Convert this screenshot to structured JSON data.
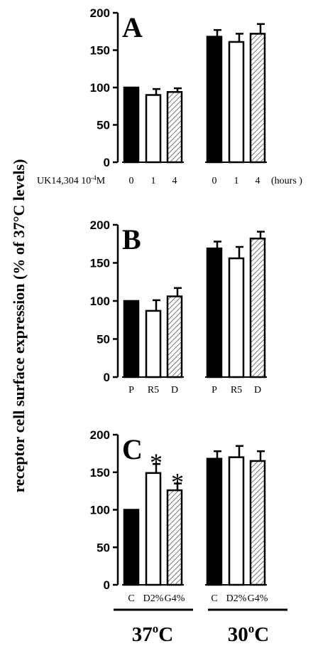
{
  "ylabel": "receptor cell surface expression  (% of 37°C levels)",
  "colors": {
    "solid": "#000000",
    "open": "#ffffff",
    "hatched": "#aaaaaa"
  },
  "groups": [
    {
      "label": "37°C",
      "sup": "o",
      "base": "37",
      "unit": "C"
    },
    {
      "label": "30°C",
      "sup": "o",
      "base": "30",
      "unit": "C"
    }
  ],
  "chart_data": [
    {
      "type": "bar",
      "panel": "A",
      "ylim": [
        0,
        200
      ],
      "yticks": [
        0,
        50,
        100,
        150,
        200
      ],
      "prefix_label": "UK14,304 10",
      "prefix_sup": "-4",
      "prefix_suffix": "M",
      "suffix_label": "(hours )",
      "categories": [
        "0",
        "1",
        "4",
        "0",
        "1",
        "4"
      ],
      "values": [
        100,
        90,
        94,
        168,
        161,
        172
      ],
      "errors": [
        0,
        8,
        5,
        9,
        11,
        13
      ],
      "styles": [
        "solid",
        "open",
        "hatched",
        "solid",
        "open",
        "hatched"
      ],
      "significant": [
        false,
        false,
        false,
        false,
        false,
        false
      ]
    },
    {
      "type": "bar",
      "panel": "B",
      "ylim": [
        0,
        200
      ],
      "yticks": [
        0,
        50,
        100,
        150,
        200
      ],
      "categories": [
        "P",
        "R5",
        "D",
        "P",
        "R5",
        "D"
      ],
      "values": [
        100,
        87,
        106,
        169,
        156,
        182
      ],
      "errors": [
        0,
        14,
        11,
        9,
        15,
        9
      ],
      "styles": [
        "solid",
        "open",
        "hatched",
        "solid",
        "open",
        "hatched"
      ],
      "significant": [
        false,
        false,
        false,
        false,
        false,
        false
      ]
    },
    {
      "type": "bar",
      "panel": "C",
      "ylim": [
        0,
        200
      ],
      "yticks": [
        0,
        50,
        100,
        150,
        200
      ],
      "categories": [
        "C",
        "D2%",
        "G4%",
        "C",
        "D2%",
        "G4%"
      ],
      "values": [
        100,
        149,
        126,
        168,
        170,
        165
      ],
      "errors": [
        0,
        12,
        9,
        10,
        15,
        13
      ],
      "styles": [
        "solid",
        "open",
        "hatched",
        "solid",
        "open",
        "hatched"
      ],
      "significant": [
        false,
        true,
        true,
        false,
        false,
        false
      ],
      "sig_marker": "*"
    }
  ]
}
